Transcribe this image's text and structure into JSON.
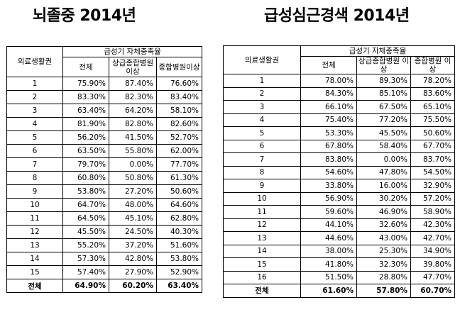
{
  "left": {
    "title": "뇌졸중 2014년",
    "header": {
      "region": "의료생활권",
      "group": "급성기 자체충족율",
      "col_all": "전체",
      "col_upper": "상급종합병원 이상",
      "col_general": "종합병원이상"
    },
    "rows": [
      {
        "no": "1",
        "all": "75.90%",
        "upper": "87.40%",
        "general": "76.60%"
      },
      {
        "no": "2",
        "all": "83.30%",
        "upper": "82.30%",
        "general": "83.40%"
      },
      {
        "no": "3",
        "all": "63.40%",
        "upper": "64.20%",
        "general": "58.10%"
      },
      {
        "no": "4",
        "all": "81.90%",
        "upper": "82.80%",
        "general": "82.60%"
      },
      {
        "no": "5",
        "all": "56.20%",
        "upper": "41.50%",
        "general": "52.70%"
      },
      {
        "no": "6",
        "all": "63.50%",
        "upper": "55.80%",
        "general": "62.00%"
      },
      {
        "no": "7",
        "all": "79.70%",
        "upper": "0.00%",
        "general": "77.70%"
      },
      {
        "no": "8",
        "all": "60.80%",
        "upper": "50.80%",
        "general": "61.30%"
      },
      {
        "no": "9",
        "all": "53.80%",
        "upper": "27.20%",
        "general": "50.60%"
      },
      {
        "no": "10",
        "all": "64.70%",
        "upper": "48.00%",
        "general": "64.60%"
      },
      {
        "no": "11",
        "all": "64.50%",
        "upper": "45.10%",
        "general": "62.80%"
      },
      {
        "no": "12",
        "all": "45.50%",
        "upper": "24.50%",
        "general": "40.30%"
      },
      {
        "no": "13",
        "all": "55.20%",
        "upper": "37.20%",
        "general": "51.60%"
      },
      {
        "no": "14",
        "all": "57.30%",
        "upper": "42.80%",
        "general": "53.80%"
      },
      {
        "no": "15",
        "all": "57.40%",
        "upper": "27.90%",
        "general": "52.90%"
      }
    ],
    "total": {
      "label": "전체",
      "all": "64.90%",
      "upper": "60.20%",
      "general": "63.40%"
    }
  },
  "right": {
    "title": "급성심근경색 2014년",
    "header": {
      "region": "의료생활권",
      "group": "급성기 자체충족율",
      "col_all": "전체",
      "col_upper": "상급종합병원 이상",
      "col_general": "종합병원 이상"
    },
    "rows": [
      {
        "no": "1",
        "all": "78.00%",
        "upper": "89.30%",
        "general": "78.20%"
      },
      {
        "no": "2",
        "all": "84.30%",
        "upper": "85.10%",
        "general": "83.60%"
      },
      {
        "no": "3",
        "all": "66.10%",
        "upper": "67.50%",
        "general": "65.10%"
      },
      {
        "no": "4",
        "all": "75.40%",
        "upper": "77.20%",
        "general": "75.50%"
      },
      {
        "no": "5",
        "all": "53.30%",
        "upper": "45.50%",
        "general": "50.60%"
      },
      {
        "no": "6",
        "all": "67.80%",
        "upper": "58.40%",
        "general": "67.70%"
      },
      {
        "no": "7",
        "all": "83.80%",
        "upper": "0.00%",
        "general": "83.70%"
      },
      {
        "no": "8",
        "all": "54.60%",
        "upper": "47.80%",
        "general": "54.50%"
      },
      {
        "no": "9",
        "all": "33.80%",
        "upper": "16.00%",
        "general": "32.90%"
      },
      {
        "no": "10",
        "all": "56.90%",
        "upper": "30.20%",
        "general": "57.20%"
      },
      {
        "no": "11",
        "all": "59.60%",
        "upper": "46.90%",
        "general": "58.90%"
      },
      {
        "no": "12",
        "all": "44.10%",
        "upper": "32.60%",
        "general": "42.30%"
      },
      {
        "no": "13",
        "all": "44.60%",
        "upper": "43.00%",
        "general": "42.70%"
      },
      {
        "no": "14",
        "all": "38.00%",
        "upper": "25.30%",
        "general": "34.90%"
      },
      {
        "no": "15",
        "all": "41.80%",
        "upper": "32.30%",
        "general": "39.80%"
      },
      {
        "no": "16",
        "all": "51.50%",
        "upper": "28.80%",
        "general": "47.70%"
      }
    ],
    "total": {
      "label": "전체",
      "all": "61.60%",
      "upper": "57.80%",
      "general": "60.70%"
    }
  }
}
